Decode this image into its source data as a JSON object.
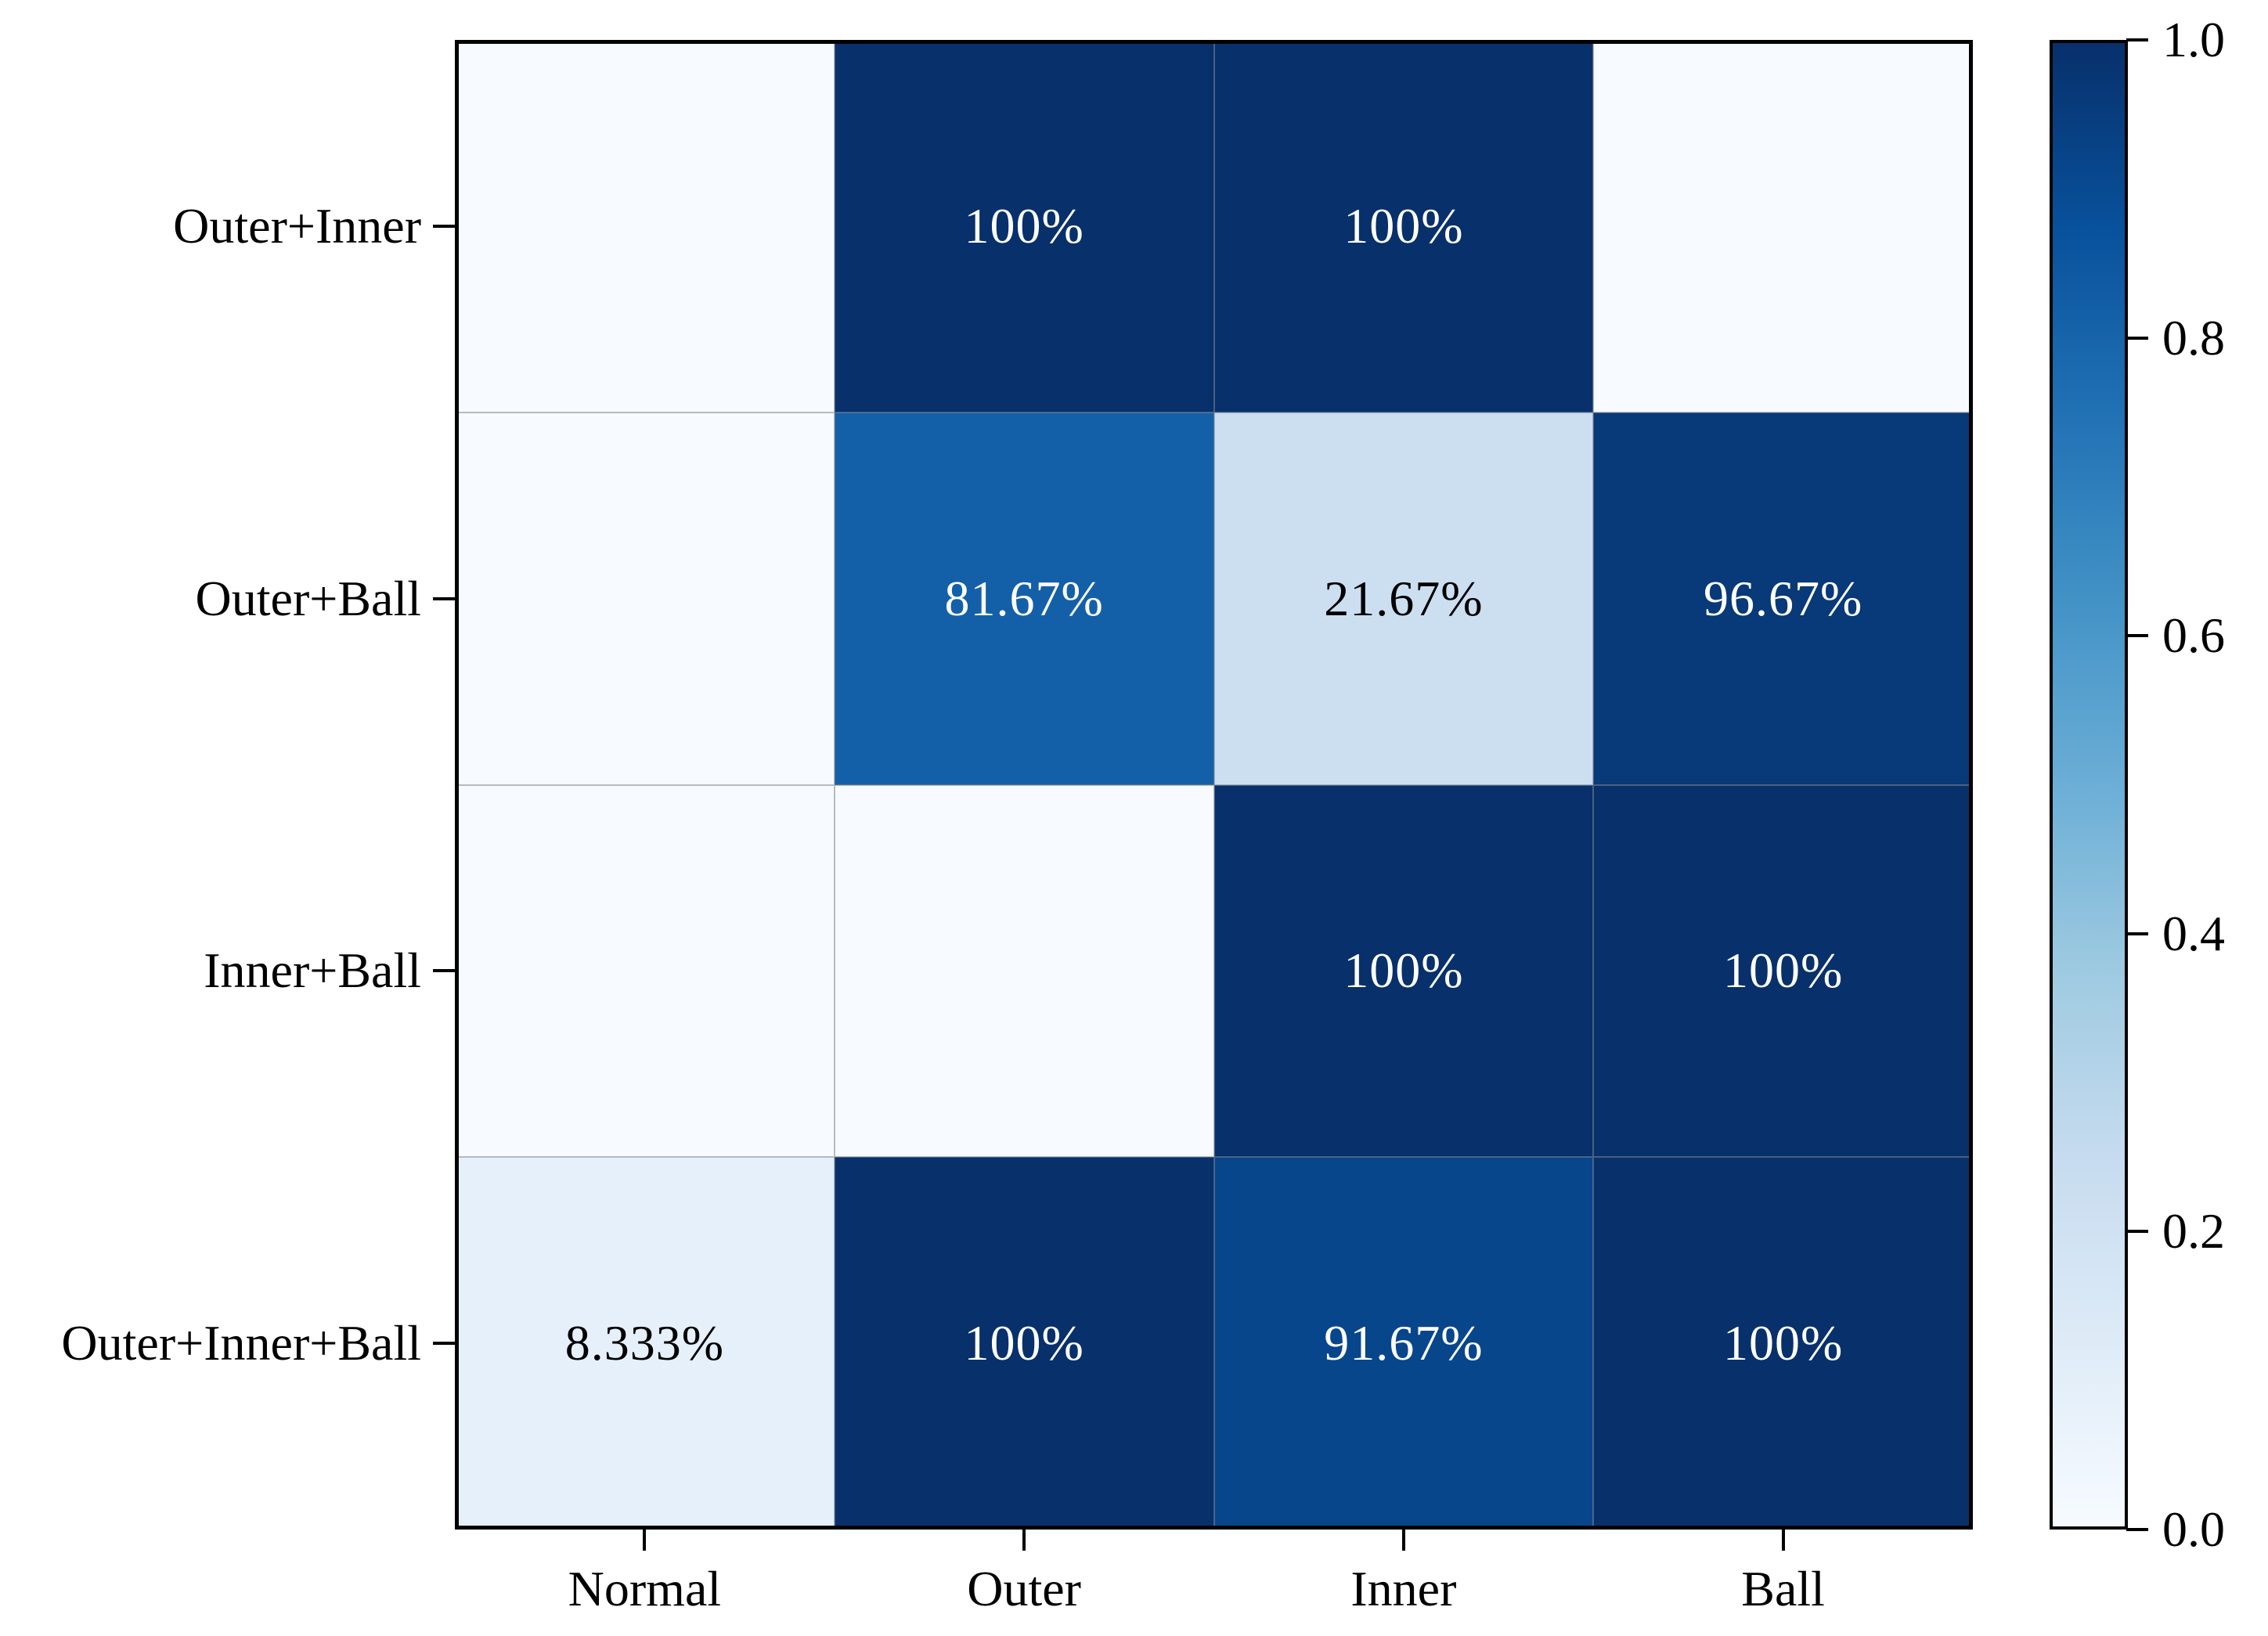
{
  "figure": {
    "background": "#ffffff",
    "title": ""
  },
  "chart_data": {
    "type": "heatmap",
    "title": "",
    "xlabel": "",
    "ylabel": "",
    "x_categories": [
      "Normal",
      "Outer",
      "Inner",
      "Ball"
    ],
    "y_categories": [
      "Outer+Inner",
      "Outer+Ball",
      "Inner+Ball",
      "Outer+Inner+Ball"
    ],
    "values": [
      [
        0,
        1.0,
        1.0,
        0
      ],
      [
        0,
        0.8167,
        0.2167,
        0.9667
      ],
      [
        0,
        0,
        1.0,
        1.0
      ],
      [
        0.08333,
        1.0,
        0.9167,
        1.0
      ]
    ],
    "cell_labels": [
      [
        "",
        "100%",
        "100%",
        ""
      ],
      [
        "",
        "81.67%",
        "21.67%",
        "96.67%"
      ],
      [
        "",
        "",
        "100%",
        "100%"
      ],
      [
        "8.333%",
        "100%",
        "91.67%",
        "100%"
      ]
    ],
    "vmin": 0.0,
    "vmax": 1.0,
    "grid_lines": true,
    "legend_position": "none",
    "colormap": {
      "name": "Blues",
      "stops": [
        {
          "t": 0.0,
          "hex": "#f7fbff"
        },
        {
          "t": 0.125,
          "hex": "#deebf7"
        },
        {
          "t": 0.25,
          "hex": "#c6dbef"
        },
        {
          "t": 0.375,
          "hex": "#9ecae1"
        },
        {
          "t": 0.5,
          "hex": "#6baed6"
        },
        {
          "t": 0.625,
          "hex": "#4292c6"
        },
        {
          "t": 0.75,
          "hex": "#2171b5"
        },
        {
          "t": 0.875,
          "hex": "#08519c"
        },
        {
          "t": 1.0,
          "hex": "#08306b"
        }
      ]
    },
    "colorbar": {
      "side": "right",
      "ticks": [
        {
          "label": "1.0",
          "value": 1.0
        },
        {
          "label": "0.8",
          "value": 0.8
        },
        {
          "label": "0.6",
          "value": 0.6
        },
        {
          "label": "0.4",
          "value": 0.4
        },
        {
          "label": "0.2",
          "value": 0.2
        },
        {
          "label": "0.0",
          "value": 0.0
        }
      ]
    }
  },
  "style": {
    "cell_text_light": "#ffffff",
    "cell_text_dark": "#000000",
    "axis_color": "#000000",
    "grid_line_color": "rgba(128,134,148,0.55)"
  }
}
